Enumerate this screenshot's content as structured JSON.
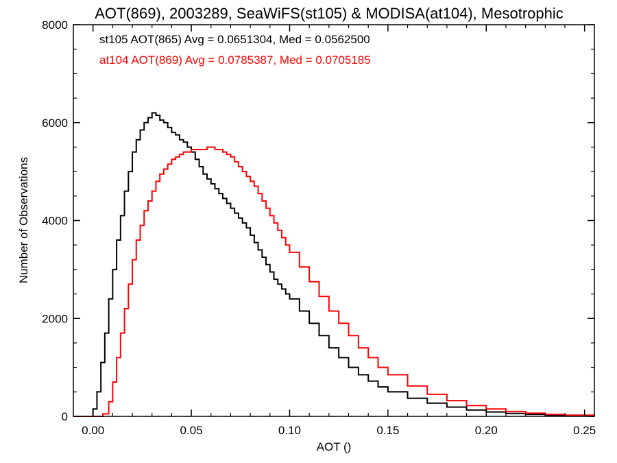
{
  "chart_data": {
    "type": "line",
    "title": "AOT(869), 2003289, SeaWiFS(st105) & MODISA(at104), Mesotrophic",
    "xlabel": "AOT ()",
    "ylabel": "Number of Observations",
    "xlim": [
      -0.01,
      0.255
    ],
    "ylim": [
      0,
      8000
    ],
    "xticks": [
      0.0,
      0.05,
      0.1,
      0.15,
      0.2,
      0.25
    ],
    "xtick_labels": [
      "0.00",
      "0.05",
      "0.10",
      "0.15",
      "0.20",
      "0.25"
    ],
    "yticks": [
      0,
      2000,
      4000,
      6000,
      8000
    ],
    "ytick_labels": [
      "0",
      "2000",
      "4000",
      "6000",
      "8000"
    ],
    "grid": false,
    "legend_position": "top-left",
    "series": [
      {
        "name": "st105 AOT(865) Avg = 0.0651304, Med = 0.0562500",
        "color": "#000000",
        "step": "post",
        "x": [
          -0.01,
          0.0,
          0.002,
          0.004,
          0.006,
          0.008,
          0.01,
          0.012,
          0.014,
          0.016,
          0.018,
          0.02,
          0.022,
          0.024,
          0.026,
          0.028,
          0.03,
          0.032,
          0.034,
          0.036,
          0.038,
          0.04,
          0.042,
          0.044,
          0.046,
          0.048,
          0.05,
          0.052,
          0.054,
          0.056,
          0.058,
          0.06,
          0.062,
          0.064,
          0.066,
          0.068,
          0.07,
          0.072,
          0.074,
          0.076,
          0.078,
          0.08,
          0.082,
          0.084,
          0.086,
          0.088,
          0.09,
          0.092,
          0.094,
          0.096,
          0.098,
          0.1,
          0.105,
          0.11,
          0.115,
          0.12,
          0.125,
          0.13,
          0.135,
          0.14,
          0.145,
          0.15,
          0.16,
          0.17,
          0.18,
          0.19,
          0.2,
          0.21,
          0.22,
          0.23,
          0.24,
          0.255
        ],
        "y": [
          0,
          150,
          500,
          1100,
          1700,
          2400,
          3000,
          3600,
          4100,
          4600,
          5000,
          5400,
          5650,
          5850,
          6000,
          6100,
          6200,
          6150,
          6050,
          6000,
          5900,
          5800,
          5750,
          5650,
          5600,
          5500,
          5400,
          5250,
          5100,
          4950,
          4850,
          4750,
          4650,
          4550,
          4450,
          4350,
          4250,
          4150,
          4050,
          3950,
          3850,
          3700,
          3550,
          3400,
          3250,
          3100,
          2950,
          2800,
          2700,
          2600,
          2500,
          2400,
          2150,
          1900,
          1650,
          1400,
          1200,
          1000,
          850,
          720,
          600,
          500,
          370,
          270,
          190,
          130,
          90,
          60,
          40,
          25,
          15,
          0
        ]
      },
      {
        "name": "at104 AOT(869) Avg = 0.0785387, Med = 0.0705185",
        "color": "#ff0000",
        "step": "post",
        "x": [
          -0.01,
          0.0,
          0.005,
          0.008,
          0.01,
          0.012,
          0.014,
          0.016,
          0.018,
          0.02,
          0.022,
          0.024,
          0.026,
          0.028,
          0.03,
          0.032,
          0.034,
          0.036,
          0.038,
          0.04,
          0.042,
          0.044,
          0.046,
          0.048,
          0.05,
          0.052,
          0.054,
          0.056,
          0.058,
          0.06,
          0.062,
          0.064,
          0.066,
          0.068,
          0.07,
          0.072,
          0.074,
          0.076,
          0.078,
          0.08,
          0.082,
          0.084,
          0.086,
          0.088,
          0.09,
          0.092,
          0.094,
          0.096,
          0.098,
          0.1,
          0.105,
          0.11,
          0.115,
          0.12,
          0.125,
          0.13,
          0.135,
          0.14,
          0.145,
          0.15,
          0.16,
          0.17,
          0.18,
          0.19,
          0.2,
          0.21,
          0.22,
          0.23,
          0.24,
          0.255
        ],
        "y": [
          0,
          0,
          50,
          300,
          700,
          1200,
          1700,
          2200,
          2700,
          3200,
          3600,
          3900,
          4200,
          4400,
          4600,
          4800,
          4950,
          5050,
          5150,
          5250,
          5300,
          5350,
          5400,
          5400,
          5450,
          5450,
          5450,
          5450,
          5500,
          5500,
          5450,
          5450,
          5400,
          5350,
          5300,
          5200,
          5100,
          5000,
          4900,
          4800,
          4700,
          4550,
          4400,
          4250,
          4100,
          3950,
          3800,
          3650,
          3500,
          3350,
          3050,
          2750,
          2450,
          2150,
          1900,
          1650,
          1400,
          1200,
          1000,
          850,
          620,
          450,
          320,
          220,
          150,
          100,
          65,
          40,
          25,
          0
        ]
      }
    ]
  }
}
